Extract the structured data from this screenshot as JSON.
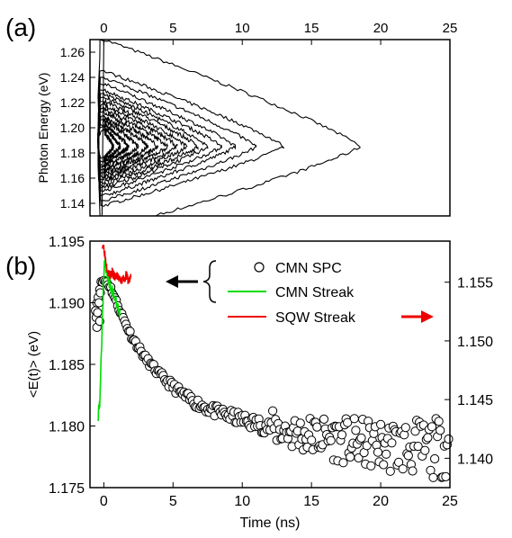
{
  "chart_data": [
    {
      "panel_label": "(a)",
      "type": "contour",
      "ylabel": "Photon Energy (eV)",
      "x_ticks": [
        "0",
        "5",
        "10",
        "15",
        "20",
        "25"
      ],
      "y_ticks": [
        "1.14",
        "1.16",
        "1.18",
        "1.20",
        "1.22",
        "1.24",
        "1.26"
      ],
      "xlim": [
        -1,
        25
      ],
      "ylim": [
        1.13,
        1.27
      ],
      "center_energy": 1.185,
      "contour_levels": [
        {
          "level": 1,
          "half_width_eV": 0.085,
          "extent_ns": 18.5
        },
        {
          "level": 2,
          "half_width_eV": 0.06,
          "extent_ns": 13.0
        },
        {
          "level": 3,
          "half_width_eV": 0.055,
          "extent_ns": 11.0
        },
        {
          "level": 4,
          "half_width_eV": 0.05,
          "extent_ns": 9.5
        },
        {
          "level": 5,
          "half_width_eV": 0.045,
          "extent_ns": 8.5
        },
        {
          "level": 6,
          "half_width_eV": 0.042,
          "extent_ns": 7.5
        },
        {
          "level": 7,
          "half_width_eV": 0.039,
          "extent_ns": 6.8
        },
        {
          "level": 8,
          "half_width_eV": 0.036,
          "extent_ns": 6.0
        },
        {
          "level": 9,
          "half_width_eV": 0.033,
          "extent_ns": 5.3
        },
        {
          "level": 10,
          "half_width_eV": 0.03,
          "extent_ns": 4.6
        },
        {
          "level": 11,
          "half_width_eV": 0.027,
          "extent_ns": 3.9
        },
        {
          "level": 12,
          "half_width_eV": 0.024,
          "extent_ns": 3.2
        },
        {
          "level": 13,
          "half_width_eV": 0.021,
          "extent_ns": 2.5
        },
        {
          "level": 14,
          "half_width_eV": 0.018,
          "extent_ns": 1.8
        },
        {
          "level": 15,
          "half_width_eV": 0.015,
          "extent_ns": 1.2
        },
        {
          "level": 16,
          "half_width_eV": 0.012,
          "extent_ns": 0.7
        }
      ]
    },
    {
      "panel_label": "(b)",
      "type": "scatter",
      "xlabel": "Time (ns)",
      "ylabel": "<E(t)> (eV)",
      "x_ticks": [
        "0",
        "5",
        "10",
        "15",
        "20",
        "25"
      ],
      "y_ticks_left": [
        "1.175",
        "1.180",
        "1.185",
        "1.190",
        "1.195"
      ],
      "y_ticks_right": [
        "1.140",
        "1.145",
        "1.150",
        "1.155"
      ],
      "xlim": [
        -1,
        25
      ],
      "ylim_left": [
        1.175,
        1.195
      ],
      "ylim_right": [
        1.1375,
        1.1585
      ],
      "legend": {
        "placement": "top-right",
        "entries": [
          {
            "label": "CMN SPC",
            "marker": "open-circle",
            "color": "#000000",
            "axis": "left"
          },
          {
            "label": "CMN Streak",
            "marker": "line",
            "color": "#00dd00",
            "axis": "left"
          },
          {
            "label": "SQW Streak",
            "marker": "line",
            "color": "#ee0000",
            "axis": "right"
          }
        ]
      },
      "series": [
        {
          "name": "CMN SPC",
          "axis": "left",
          "x": [
            -0.6,
            -0.4,
            -0.3,
            -0.2,
            0.0,
            0.2,
            0.5,
            1.0,
            1.5,
            2.0,
            3.0,
            4.0,
            5.0,
            6.0,
            7.0,
            8.0,
            10.0,
            12.0,
            14.0,
            15.0,
            16.0,
            18.0,
            20.0,
            22.0,
            23.5,
            24.5,
            25.0
          ],
          "y": [
            1.1895,
            1.1905,
            1.1912,
            1.1916,
            1.1918,
            1.1917,
            1.1912,
            1.1898,
            1.1885,
            1.1873,
            1.1855,
            1.1842,
            1.1832,
            1.1823,
            1.1817,
            1.1812,
            1.1805,
            1.1799,
            1.1794,
            1.1792,
            1.1791,
            1.1787,
            1.1784,
            1.1783,
            1.1781,
            1.1783,
            1.1785
          ]
        },
        {
          "name": "CMN Streak",
          "axis": "left",
          "x": [
            -0.4,
            -0.3,
            -0.2,
            -0.1,
            0.0,
            0.1,
            0.2,
            0.4,
            0.6,
            0.8,
            1.0,
            1.2
          ],
          "y": [
            1.181,
            1.182,
            1.185,
            1.189,
            1.1925,
            1.1935,
            1.1925,
            1.1915,
            1.191,
            1.1903,
            1.1895,
            1.189
          ]
        },
        {
          "name": "SQW Streak",
          "axis": "right",
          "x": [
            -0.1,
            0.0,
            0.2,
            0.4,
            0.6,
            0.8,
            1.0,
            1.2,
            1.4,
            1.6,
            1.8,
            2.0
          ],
          "y": [
            1.1583,
            1.158,
            1.1565,
            1.1555,
            1.1558,
            1.1554,
            1.1556,
            1.155,
            1.1553,
            1.1556,
            1.1551,
            1.1555
          ]
        }
      ],
      "annotations": [
        {
          "type": "arrow",
          "direction": "left",
          "color": "#000000",
          "meaning": "left axis"
        },
        {
          "type": "arrow",
          "direction": "right",
          "color": "#ee0000",
          "meaning": "right axis"
        },
        {
          "type": "brace",
          "color": "#000000"
        }
      ]
    }
  ]
}
